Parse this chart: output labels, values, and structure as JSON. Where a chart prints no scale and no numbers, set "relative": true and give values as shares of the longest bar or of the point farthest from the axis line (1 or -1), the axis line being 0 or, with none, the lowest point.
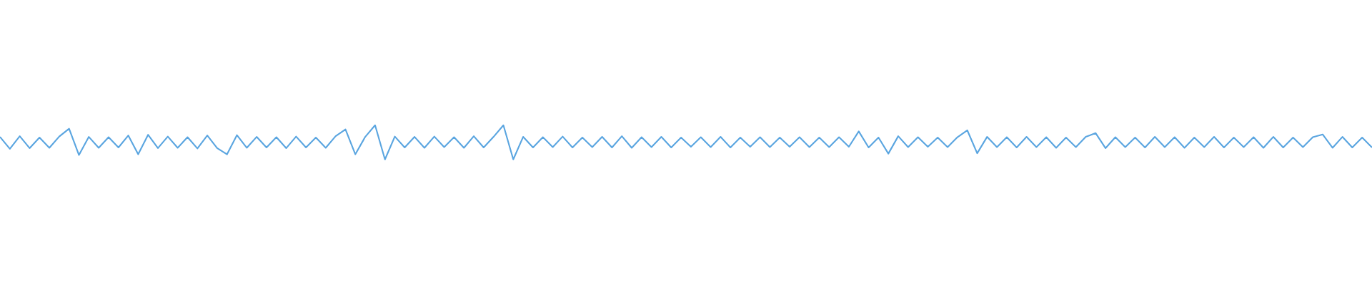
{
  "chart_data": {
    "type": "line",
    "relative": true,
    "color": "#5aa5e0",
    "categories": [
      null,
      null,
      null,
      null,
      null,
      null,
      null,
      null,
      null,
      null,
      null,
      null,
      null,
      null,
      null,
      null,
      null,
      null,
      null,
      null,
      null,
      null,
      null,
      null,
      null,
      null,
      null,
      null,
      null,
      null,
      null,
      null,
      null,
      null,
      null,
      null,
      null,
      null,
      null,
      null,
      null,
      null,
      null,
      null,
      null,
      null,
      null,
      null,
      null,
      null,
      null,
      null,
      null,
      null,
      null,
      null,
      null,
      null,
      null,
      null,
      null,
      null,
      null,
      null,
      null,
      null,
      null,
      null,
      null,
      null,
      null,
      null,
      null,
      null,
      null,
      null,
      null,
      null,
      null,
      null,
      null,
      null,
      null,
      null,
      null,
      null,
      null,
      null,
      null,
      null,
      null,
      null,
      null,
      null,
      null,
      null,
      null,
      null,
      null,
      null,
      null,
      null,
      null,
      null,
      null,
      null,
      null,
      null,
      null,
      null,
      null,
      null,
      null,
      null,
      null,
      null,
      null,
      null,
      null,
      null,
      null,
      null,
      null,
      null,
      null,
      null,
      null,
      null,
      null,
      null,
      null,
      null,
      null,
      null,
      null,
      null,
      null,
      null,
      null,
      null
    ],
    "values": [
      0.66,
      0.31,
      0.68,
      0.33,
      0.64,
      0.34,
      0.67,
      0.9,
      0.13,
      0.66,
      0.34,
      0.65,
      0.35,
      0.7,
      0.15,
      0.72,
      0.33,
      0.67,
      0.34,
      0.65,
      0.32,
      0.7,
      0.33,
      0.15,
      0.71,
      0.34,
      0.66,
      0.35,
      0.65,
      0.33,
      0.67,
      0.35,
      0.64,
      0.34,
      0.68,
      0.88,
      0.15,
      0.66,
      1.0,
      0.0,
      0.67,
      0.35,
      0.66,
      0.34,
      0.67,
      0.36,
      0.65,
      0.34,
      0.68,
      0.35,
      0.66,
      1.0,
      0.0,
      0.66,
      0.35,
      0.65,
      0.36,
      0.67,
      0.35,
      0.64,
      0.36,
      0.66,
      0.35,
      0.68,
      0.34,
      0.65,
      0.36,
      0.66,
      0.35,
      0.64,
      0.37,
      0.65,
      0.36,
      0.66,
      0.35,
      0.64,
      0.37,
      0.65,
      0.36,
      0.64,
      0.37,
      0.65,
      0.36,
      0.64,
      0.36,
      0.65,
      0.37,
      0.82,
      0.35,
      0.64,
      0.17,
      0.68,
      0.36,
      0.65,
      0.37,
      0.64,
      0.36,
      0.65,
      0.85,
      0.18,
      0.66,
      0.36,
      0.65,
      0.35,
      0.66,
      0.36,
      0.65,
      0.34,
      0.64,
      0.36,
      0.66,
      0.77,
      0.33,
      0.65,
      0.36,
      0.64,
      0.35,
      0.66,
      0.36,
      0.65,
      0.34,
      0.64,
      0.36,
      0.66,
      0.35,
      0.64,
      0.36,
      0.65,
      0.34,
      0.66,
      0.35,
      0.64,
      0.36,
      0.65,
      0.73,
      0.34,
      0.66,
      0.35,
      0.64,
      0.35
    ]
  }
}
